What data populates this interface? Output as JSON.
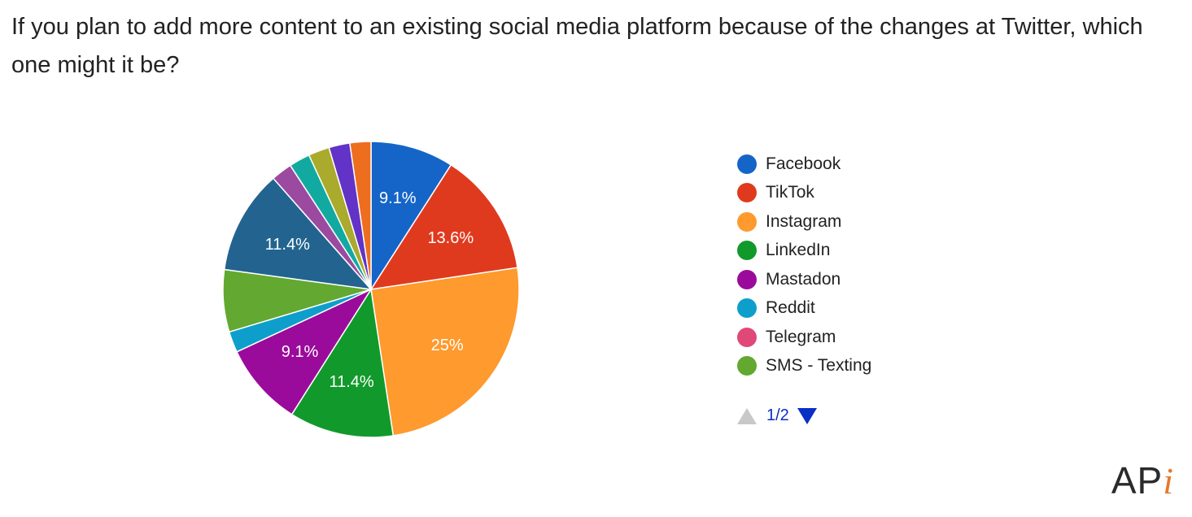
{
  "title": "If you plan to add more content to an existing social media platform because of the changes at Twitter, which one might it be?",
  "chart_data": {
    "type": "pie",
    "title": "If you plan to add more content to an existing social media platform because of the changes at Twitter, which one might it be?",
    "start_angle_deg": 90,
    "direction": "clockwise",
    "slices": [
      {
        "name": "Facebook",
        "value": 9.1,
        "color": "#1565c8",
        "label": "9.1%"
      },
      {
        "name": "TikTok",
        "value": 13.6,
        "color": "#e03a1e",
        "label": "13.6%"
      },
      {
        "name": "Instagram",
        "value": 25.0,
        "color": "#fe9a2e",
        "label": "25%"
      },
      {
        "name": "LinkedIn",
        "value": 11.4,
        "color": "#119a2b",
        "label": "11.4%"
      },
      {
        "name": "Mastadon",
        "value": 9.1,
        "color": "#9b0b9b",
        "label": "9.1%"
      },
      {
        "name": "Reddit",
        "value": 2.3,
        "color": "#0e9ecb",
        "label": ""
      },
      {
        "name": "Telegram",
        "value": 0.0,
        "color": "#e1487a",
        "label": ""
      },
      {
        "name": "SMS - Texting",
        "value": 6.8,
        "color": "#63a830",
        "label": ""
      },
      {
        "name": "",
        "value": 11.4,
        "color": "#22648f",
        "label": "11.4%"
      },
      {
        "name": "",
        "value": 2.3,
        "color": "#9b4aa0",
        "label": ""
      },
      {
        "name": "",
        "value": 2.3,
        "color": "#12aaa0",
        "label": ""
      },
      {
        "name": "",
        "value": 2.3,
        "color": "#aaaa2c",
        "label": ""
      },
      {
        "name": "",
        "value": 2.3,
        "color": "#6233c6",
        "label": ""
      },
      {
        "name": "",
        "value": 2.3,
        "color": "#ed6e1f",
        "label": ""
      }
    ],
    "legend": {
      "placement": "right",
      "entries": [
        {
          "name": "Facebook",
          "color": "#1565c8"
        },
        {
          "name": "TikTok",
          "color": "#e03a1e"
        },
        {
          "name": "Instagram",
          "color": "#fe9a2e"
        },
        {
          "name": "LinkedIn",
          "color": "#119a2b"
        },
        {
          "name": "Mastadon",
          "color": "#9b0b9b"
        },
        {
          "name": "Reddit",
          "color": "#0e9ecb"
        },
        {
          "name": "Telegram",
          "color": "#e1487a"
        },
        {
          "name": "SMS - Texting",
          "color": "#63a830"
        }
      ]
    }
  },
  "pager": {
    "text": "1/2",
    "prev_icon": "triangle-up-icon",
    "next_icon": "triangle-down-icon"
  },
  "logo": {
    "main": "AP",
    "accent": "i"
  }
}
